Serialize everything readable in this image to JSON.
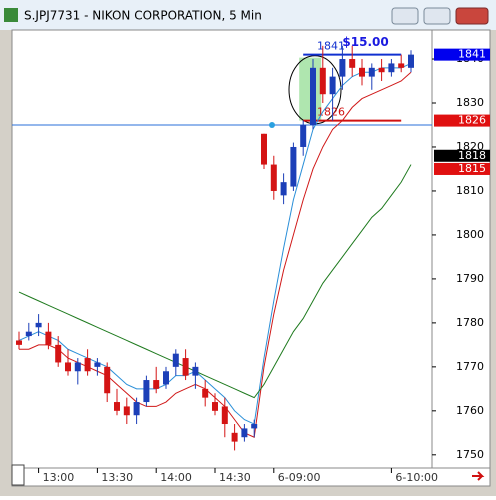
{
  "window_title": "S.JPJ7731 - NIKON CORPORATION, 5 Min",
  "chart_data": {
    "type": "candlestick",
    "categories": [
      null,
      null,
      "13:00",
      null,
      null,
      null,
      null,
      null,
      "13:30",
      null,
      null,
      null,
      null,
      null,
      "14:00",
      null,
      null,
      null,
      null,
      null,
      "14:30",
      null,
      null,
      null,
      null,
      null,
      "6-09:00",
      null,
      null,
      null,
      null,
      null,
      null,
      null,
      null,
      null,
      null,
      null,
      "6-10:00",
      null,
      null
    ],
    "open": [
      1776,
      1777,
      1779,
      1778,
      1775,
      1771,
      1769,
      1772,
      1770,
      1770,
      1762,
      1761,
      1759,
      1762,
      1767,
      1766,
      1770,
      1772,
      1768,
      1765,
      1762,
      1761,
      1755,
      1754,
      1756,
      1823,
      1816,
      1809,
      1811,
      1820,
      1825,
      1838,
      1832,
      1836,
      1840,
      1838,
      1836,
      1838,
      1837,
      1839,
      1838
    ],
    "high": [
      1778,
      1780,
      1782,
      1780,
      1777,
      1774,
      1772,
      1774,
      1772,
      1771,
      1765,
      1763,
      1763,
      1768,
      1770,
      1770,
      1774,
      1774,
      1771,
      1767,
      1764,
      1763,
      1757,
      1757,
      1758,
      1823,
      1818,
      1814,
      1821,
      1826,
      1840,
      1843,
      1838,
      1843,
      1843,
      1840,
      1839,
      1840,
      1840,
      1841,
      1842
    ],
    "low": [
      1774,
      1776,
      1777,
      1774,
      1770,
      1768,
      1766,
      1768,
      1768,
      1762,
      1759,
      1757,
      1757,
      1761,
      1764,
      1765,
      1768,
      1767,
      1765,
      1761,
      1759,
      1754,
      1751,
      1753,
      1754,
      1815,
      1808,
      1807,
      1810,
      1818,
      1824,
      1830,
      1826,
      1833,
      1836,
      1834,
      1833,
      1835,
      1836,
      1837,
      1837
    ],
    "close": [
      1775,
      1778,
      1780,
      1775,
      1771,
      1769,
      1771,
      1769,
      1771,
      1764,
      1760,
      1759,
      1762,
      1767,
      1765,
      1769,
      1773,
      1768,
      1770,
      1763,
      1760,
      1757,
      1753,
      1756,
      1757,
      1816,
      1810,
      1812,
      1820,
      1825,
      1838,
      1832,
      1836,
      1840,
      1838,
      1836,
      1838,
      1837,
      1839,
      1838,
      1841
    ],
    "up_color": "#1c3fb8",
    "down_color": "#d41414",
    "series": [
      {
        "color": "#2a8fd8",
        "values": [
          1776,
          1777,
          1778,
          1777,
          1776,
          1774,
          1773,
          1772,
          1771,
          1770,
          1768,
          1766,
          1765,
          1765,
          1765,
          1766,
          1768,
          1768,
          1769,
          1767,
          1765,
          1763,
          1760,
          1758,
          1757,
          1772,
          1785,
          1797,
          1808,
          1816,
          1824,
          1828,
          1831,
          1834,
          1836,
          1837,
          1837,
          1838,
          1838,
          1838,
          1839
        ]
      },
      {
        "color": "#d01818",
        "values": [
          1774,
          1774,
          1775,
          1775,
          1774,
          1772,
          1771,
          1770,
          1769,
          1768,
          1766,
          1764,
          1762,
          1761,
          1761,
          1762,
          1764,
          1765,
          1766,
          1765,
          1763,
          1761,
          1758,
          1755,
          1754,
          1770,
          1782,
          1792,
          1800,
          1808,
          1815,
          1820,
          1824,
          1826,
          1829,
          1831,
          1832,
          1833,
          1834,
          1835,
          1837
        ]
      },
      {
        "color": "#1e7a1e",
        "values": [
          1787,
          1786,
          1785,
          1784,
          1783,
          1782,
          1781,
          1780,
          1779,
          1778,
          1777,
          1776,
          1775,
          1774,
          1773,
          1772,
          1771,
          1770,
          1769,
          1768,
          1767,
          1766,
          1765,
          1764,
          1763,
          1766,
          1770,
          1774,
          1778,
          1781,
          1785,
          1789,
          1792,
          1795,
          1798,
          1801,
          1804,
          1806,
          1809,
          1812,
          1816
        ]
      }
    ],
    "ylim": [
      1747,
      1846.6
    ],
    "yticks": [
      1750,
      1760,
      1770,
      1780,
      1790,
      1800,
      1810,
      1820,
      1830,
      1840
    ],
    "hline": {
      "value": 1825,
      "color": "#2a6fd8"
    },
    "price_labels": [
      {
        "value": 1841,
        "color": "#0000ee",
        "text_color": "#ffffff"
      },
      {
        "value": 1826,
        "color": "#e01010",
        "text_color": "#ffffff"
      },
      {
        "value": 1818,
        "color": "#000000",
        "text_color": "#ffffff"
      },
      {
        "value": 1815,
        "color": "#e01010",
        "text_color": "#ffffff"
      }
    ],
    "trade": {
      "profit": "$15.00",
      "entry": 1826,
      "exit": 1841
    }
  }
}
